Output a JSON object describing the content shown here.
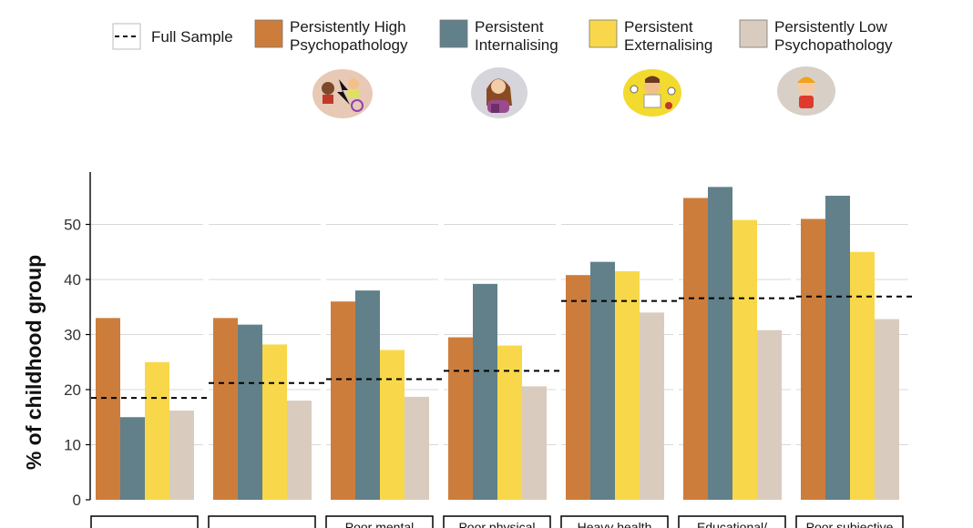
{
  "chart_data": {
    "type": "bar",
    "ylabel": "% of childhood group",
    "xlabel": "",
    "ylim": [
      0,
      59
    ],
    "yticks": [
      0,
      10,
      20,
      30,
      40,
      50
    ],
    "grid": true,
    "legend_position": "top",
    "reference_line": {
      "name": "Full Sample",
      "style": "dashed"
    },
    "facets": [
      "",
      "",
      "Poor mental",
      "Poor physical",
      "Heavy health",
      "Educational/",
      "Poor subjective"
    ],
    "series": [
      {
        "name": "Persistently High Psychopathology",
        "label_lines": [
          "Persistently High",
          "Psychopathology"
        ],
        "color": "#CD7D3B",
        "values": [
          33,
          33,
          36,
          29.5,
          40.8,
          54.8,
          51
        ]
      },
      {
        "name": "Persistent Internalising",
        "label_lines": [
          "Persistent",
          "Internalising"
        ],
        "color": "#61808A",
        "values": [
          15,
          31.8,
          38,
          39.2,
          43.2,
          56.8,
          55.2
        ]
      },
      {
        "name": "Persistent Externalising",
        "label_lines": [
          "Persistent",
          "Externalising"
        ],
        "color": "#F8D84A",
        "values": [
          25,
          28.2,
          27.2,
          28,
          41.5,
          50.8,
          45
        ]
      },
      {
        "name": "Persistently Low Psychopathology",
        "label_lines": [
          "Persistently Low",
          "Psychopathology"
        ],
        "color": "#D9CCBE",
        "values": [
          16.2,
          18,
          18.7,
          20.6,
          34,
          30.8,
          32.8
        ]
      }
    ],
    "full_sample": [
      18.5,
      21.2,
      21.9,
      23.4,
      36.1,
      36.6,
      36.9
    ]
  },
  "legend": {
    "full_sample_label": "Full Sample"
  },
  "icons": [
    "conflict-illustration-icon",
    "sad-girl-illustration-icon",
    "angry-boy-illustration-icon",
    "calm-child-illustration-icon"
  ]
}
